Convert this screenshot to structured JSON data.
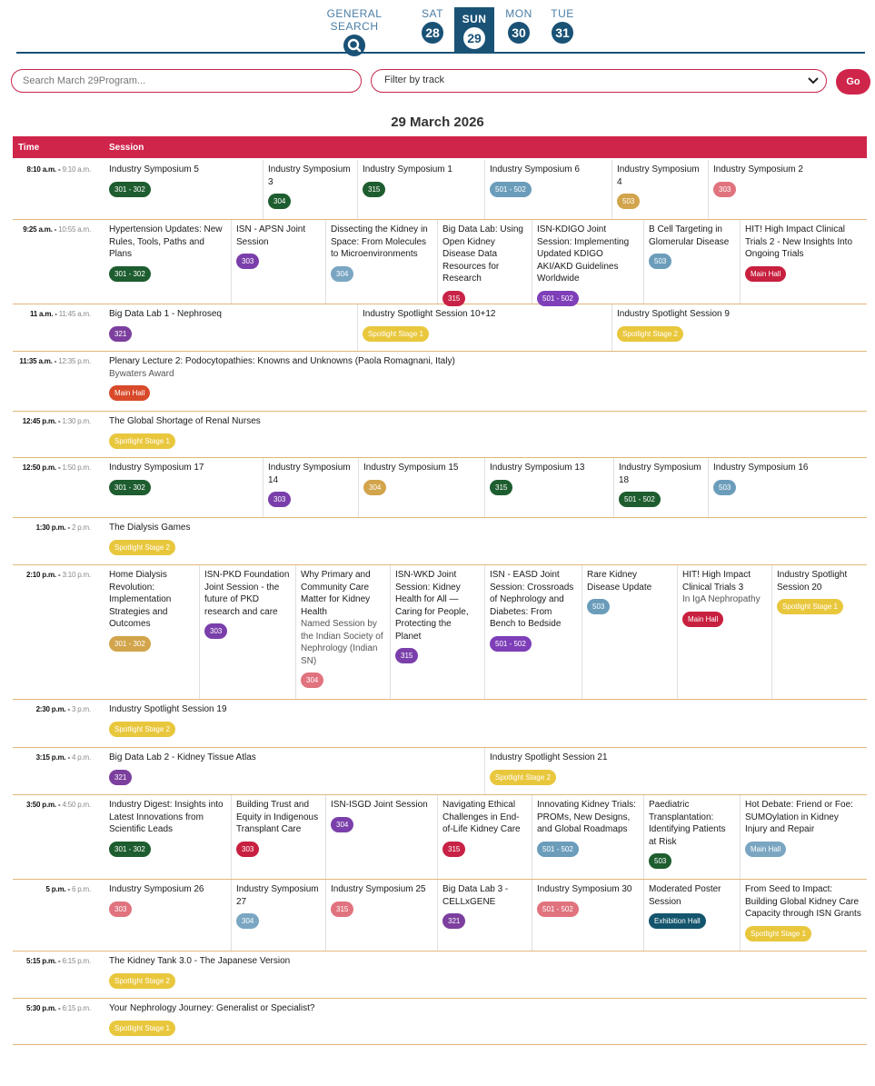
{
  "nav": {
    "general_search": "GENERAL SEARCH",
    "days": [
      {
        "dow": "SAT",
        "num": "28"
      },
      {
        "dow": "SUN",
        "num": "29"
      },
      {
        "dow": "MON",
        "num": "30"
      },
      {
        "dow": "TUE",
        "num": "31"
      }
    ]
  },
  "search": {
    "placeholder": "Search March 29Program..."
  },
  "filter": {
    "label": "Filter by track"
  },
  "go": "Go",
  "date": "29 March 2026",
  "header": {
    "time": "Time",
    "session": "Session"
  },
  "colors": {
    "301-302": "#1e5d2f",
    "303": "#e0737e",
    "304": "#7aa6c2",
    "315": "#c82246",
    "321": "#7c3f9e",
    "501-502": "#7e3fb8",
    "503": "#6b9dbb",
    "main": "#c8203f",
    "spot": "#e9c73d",
    "exh": "#14556d",
    "gold": "#d2a44b",
    "dkgreen": "#1e5d2f",
    "purp303": "#7a3faa"
  },
  "rows": [
    {
      "start": "8:10 a.m.",
      "end": "9:10 a.m.",
      "cells": [
        {
          "title": "Industry Symposium 5",
          "badge": "301 - 302"
        },
        {
          "title": "Industry Symposium 3",
          "badge": "304"
        },
        {
          "title": "Industry Symposium 1",
          "badge": "315"
        },
        {
          "title": "Industry Symposium 6",
          "badge": "501 - 502"
        },
        {
          "title": "Industry Symposium 4",
          "badge": "503"
        },
        {
          "title": "Industry Symposium 2",
          "badge": "303"
        }
      ]
    },
    {
      "start": "9:25 a.m.",
      "end": "10:55 a.m.",
      "cells": [
        {
          "title": "Hypertension Updates: New Rules, Tools, Paths and Plans",
          "badge": "301 - 302"
        },
        {
          "title": "ISN - APSN Joint Session",
          "badge": "303"
        },
        {
          "title": "Dissecting the Kidney in Space: From Molecules to Microenvironments",
          "badge": "304"
        },
        {
          "title": "Big Data Lab: Using Open Kidney Disease Data Resources for Research",
          "badge": "315"
        },
        {
          "title": "ISN-KDIGO Joint Session: Implementing Updated KDIGO AKI/AKD Guidelines Worldwide",
          "badge": "501 - 502"
        },
        {
          "title": "B Cell Targeting in Glomerular Disease",
          "badge": "503"
        },
        {
          "title": "HIT! High Impact Clinical Trials 2 - New Insights Into Ongoing Trials",
          "badge": "Main Hall"
        }
      ]
    },
    {
      "start": "11 a.m.",
      "end": "11:45 a.m.",
      "cells": [
        {
          "title": "Big Data Lab 1 - Nephroseq",
          "badge": "321"
        },
        {
          "title": "Industry Spotlight Session 10+12",
          "badge": "Spotlight Stage 1"
        },
        {
          "title": "Industry Spotlight Session 9",
          "badge": "Spotlight Stage 2"
        }
      ]
    },
    {
      "start": "11:35 a.m.",
      "end": "12:35 p.m.",
      "cells": [
        {
          "title": "Plenary Lecture 2: Podocytopathies: Knowns and Unknowns (Paola Romagnani, Italy)",
          "sub": "Bywaters Award",
          "badge": "Main Hall"
        }
      ]
    },
    {
      "start": "12:45 p.m.",
      "end": "1:30 p.m.",
      "cells": [
        {
          "title": "The Global Shortage of Renal Nurses",
          "badge": "Spotlight Stage 1"
        }
      ]
    },
    {
      "start": "12:50 p.m.",
      "end": "1:50 p.m.",
      "cells": [
        {
          "title": "Industry Symposium 17",
          "badge": "301 - 302"
        },
        {
          "title": "Industry Symposium 14",
          "badge": "303"
        },
        {
          "title": "Industry Symposium 15",
          "badge": "304"
        },
        {
          "title": "Industry Symposium 13",
          "badge": "315"
        },
        {
          "title": "Industry Symposium 18",
          "badge": "501 - 502"
        },
        {
          "title": "Industry Symposium 16",
          "badge": "503"
        }
      ]
    },
    {
      "start": "1:30 p.m.",
      "end": "2 p.m.",
      "cells": [
        {
          "title": "The Dialysis Games",
          "badge": "Spotlight Stage 2"
        }
      ]
    },
    {
      "start": "2:10 p.m.",
      "end": "3:10 p.m.",
      "cells": [
        {
          "title": "Home Dialysis Revolution: Implementation Strategies and Outcomes",
          "badge": "301 - 302"
        },
        {
          "title": "ISN-PKD Foundation Joint Session - the future of PKD research and care",
          "badge": "303"
        },
        {
          "title": "Why Primary and Community Care Matter for Kidney Health",
          "sub": "Named Session by the Indian Society of Nephrology (Indian SN)",
          "badge": "304"
        },
        {
          "title": "ISN-WKD Joint Session: Kidney Health for All — Caring for People, Protecting the Planet",
          "badge": "315"
        },
        {
          "title": "ISN - EASD Joint Session: Crossroads of Nephrology and Diabetes: From Bench to Bedside",
          "badge": "501 - 502"
        },
        {
          "title": "Rare Kidney Disease Update",
          "badge": "503"
        },
        {
          "title": "HIT! High Impact Clinical Trials 3",
          "sub": "In IgA Nephropathy",
          "badge": "Main Hall"
        },
        {
          "title": "Industry Spotlight Session 20",
          "badge": "Spotlight Stage 1"
        }
      ]
    },
    {
      "start": "2:30 p.m.",
      "end": "3 p.m.",
      "cells": [
        {
          "title": "Industry Spotlight Session 19",
          "badge": "Spotlight Stage 2"
        }
      ]
    },
    {
      "start": "3:15 p.m.",
      "end": "4 p.m.",
      "cells": [
        {
          "title": "Big Data Lab 2 - Kidney Tissue Atlas",
          "badge": "321"
        },
        {
          "title": "Industry Spotlight Session 21",
          "badge": "Spotlight Stage 2"
        }
      ]
    },
    {
      "start": "3:50 p.m.",
      "end": "4:50 p.m.",
      "cells": [
        {
          "title": "Industry Digest: Insights into Latest Innovations from Scientific Leads",
          "badge": "301 - 302"
        },
        {
          "title": "Building Trust and Equity in Indigenous Transplant Care",
          "badge": "303"
        },
        {
          "title": "ISN-ISGD Joint Session",
          "badge": "304"
        },
        {
          "title": "Navigating Ethical Challenges in End-of-Life Kidney Care",
          "badge": "315"
        },
        {
          "title": "Innovating Kidney Trials: PROMs, New Designs, and Global Roadmaps",
          "badge": "501 - 502"
        },
        {
          "title": "Paediatric Transplantation: Identifying Patients at Risk",
          "badge": "503"
        },
        {
          "title": "Hot Debate: Friend or Foe: SUMOylation in Kidney Injury and Repair",
          "badge": "Main Hall"
        }
      ]
    },
    {
      "start": "5 p.m.",
      "end": "6 p.m.",
      "cells": [
        {
          "title": "Industry Symposium 26",
          "badge": "303"
        },
        {
          "title": "Industry Symposium 27",
          "badge": "304"
        },
        {
          "title": "Industry Symposium 25",
          "badge": "315"
        },
        {
          "title": "Big Data Lab 3 - CELLxGENE",
          "badge": "321"
        },
        {
          "title": "Industry Symposium 30",
          "badge": "501 - 502"
        },
        {
          "title": "Moderated Poster Session",
          "badge": "Exhibition Hall"
        },
        {
          "title": "From Seed to Impact: Building Global Kidney Care Capacity through ISN Grants",
          "badge": "Spotlight Stage 1"
        }
      ]
    },
    {
      "start": "5:15 p.m.",
      "end": "6:15 p.m.",
      "cells": [
        {
          "title": "The Kidney Tank 3.0 - The Japanese Version",
          "badge": "Spotlight Stage 2"
        }
      ]
    },
    {
      "start": "5:30 p.m.",
      "end": "6:15 p.m.",
      "cells": [
        {
          "title": "Your Nephrology Journey: Generalist or Specialist?",
          "badge": "Spotlight Stage 1"
        }
      ]
    }
  ]
}
